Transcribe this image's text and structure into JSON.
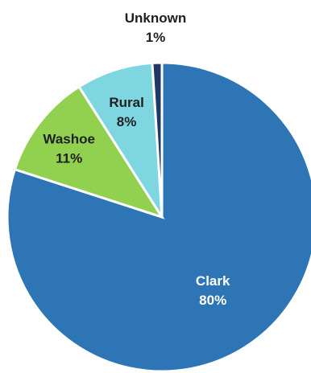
{
  "chart_data": {
    "type": "pie",
    "slices": [
      {
        "label": "Clark",
        "value": 80,
        "value_text": "80%",
        "color": "#2E75B6",
        "label_color": "#FFFFFF"
      },
      {
        "label": "Washoe",
        "value": 11,
        "value_text": "11%",
        "color": "#92D050",
        "label_color": "#1F1F1F"
      },
      {
        "label": "Rural",
        "value": 8,
        "value_text": "8%",
        "color": "#7DD6E0",
        "label_color": "#1F1F1F"
      },
      {
        "label": "Unknown",
        "value": 1,
        "value_text": "1%",
        "color": "#1F3864",
        "label_color": "#1F1F1F"
      }
    ],
    "start_angle_deg": 0,
    "direction": "clockwise",
    "data_labels": "inside, except smallest slice outside above"
  }
}
